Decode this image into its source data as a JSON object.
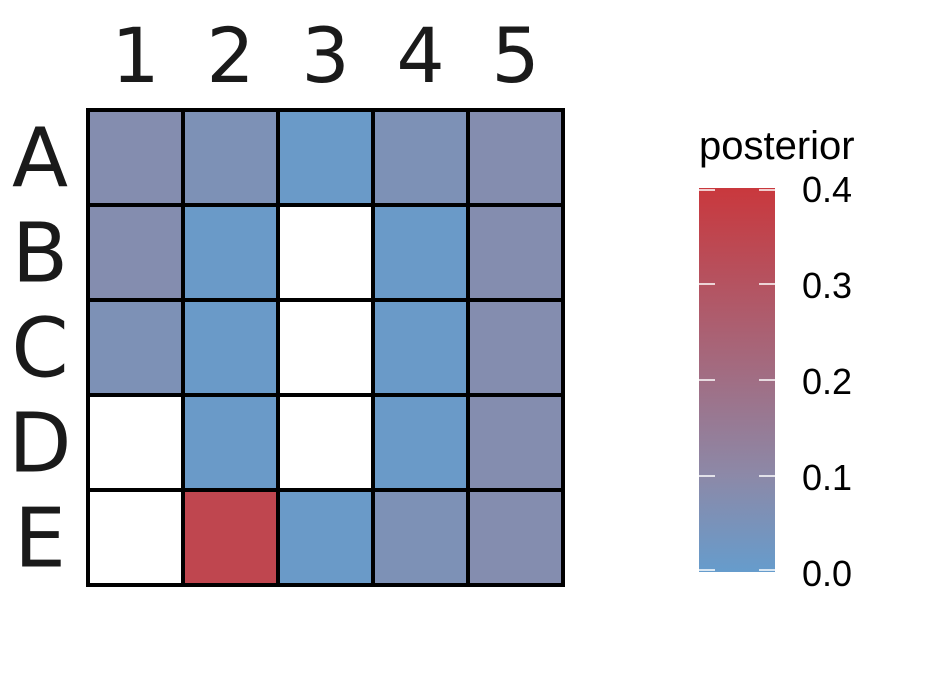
{
  "chart_data": {
    "type": "heatmap",
    "columns": [
      "1",
      "2",
      "3",
      "4",
      "5"
    ],
    "rows": [
      "A",
      "B",
      "C",
      "D",
      "E"
    ],
    "values": [
      [
        0.08,
        0.06,
        0.01,
        0.06,
        0.08
      ],
      [
        0.08,
        0.01,
        null,
        0.01,
        0.08
      ],
      [
        0.06,
        0.01,
        null,
        0.01,
        0.08
      ],
      [
        null,
        0.01,
        null,
        0.01,
        0.08
      ],
      [
        null,
        0.35,
        0.01,
        0.06,
        0.08
      ]
    ],
    "missing_color": "#ffffff",
    "color_scale": {
      "low": 0.0,
      "high": 0.4,
      "low_color": "#669ccc",
      "mid_color": "#8c89a8",
      "high_color": "#c9383d"
    },
    "legend": {
      "title": "posterior",
      "ticks": [
        "0.0",
        "0.1",
        "0.2",
        "0.3",
        "0.4"
      ],
      "tick_values": [
        0.0,
        0.1,
        0.2,
        0.3,
        0.4
      ],
      "placement": "right"
    }
  }
}
